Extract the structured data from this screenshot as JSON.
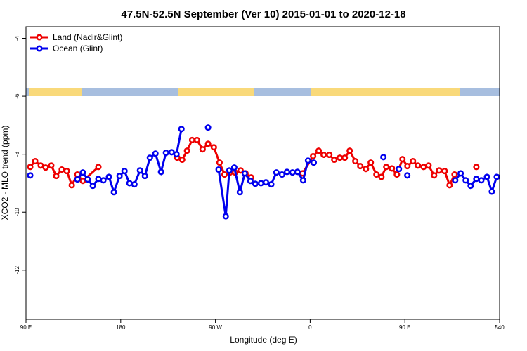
{
  "chart_data": {
    "type": "line",
    "title": "47.5N-52.5N September (Ver 10)   2015-01-01 to 2020-12-18",
    "xlabel": "Longitude (deg E)",
    "ylabel": "XCO2 - MLO trend (ppm)",
    "xlim": [
      90,
      540
    ],
    "ylim": [
      -13.7,
      -3.6
    ],
    "xticks": [
      {
        "value": 90,
        "label": "90 E"
      },
      180,
      {
        "value": 270,
        "label": "90 W"
      },
      {
        "value": 360,
        "label": "0"
      },
      {
        "value": 450,
        "label": "90 E"
      },
      540
    ],
    "yticks": [
      -4,
      -6,
      -8,
      -10,
      -12
    ],
    "legend": "top-left",
    "series": [
      {
        "name": "Land (Nadir&Glint)",
        "color": "#ee0000",
        "x": [
          94,
          98.7,
          104,
          108.7,
          114,
          118.7,
          124,
          128.8,
          133.5,
          138.8,
          144,
          158.8,
          null,
          233.7,
          238.4,
          243,
          247.8,
          252.5,
          257.8,
          263,
          268.5,
          273.9,
          278.6,
          283.8,
          288.6,
          293.9,
          298.6,
          303.9,
          null,
          352.8,
          362.8,
          368.1,
          372.8,
          378.2,
          382.9,
          388.2,
          392.9,
          397.6,
          402.9,
          407.6,
          413,
          417.6,
          423,
          427.7,
          432.3,
          437.7,
          442.4,
          447.7,
          452.4,
          457.7,
          462.4,
          467.8,
          472.5,
          477.8,
          482.5,
          487.8,
          492.5,
          497.2,
          null,
          517.9
        ],
        "values": [
          -8.44,
          -8.24,
          -8.39,
          -8.46,
          -8.39,
          -8.75,
          -8.53,
          -8.58,
          -9.07,
          -8.7,
          -8.92,
          -8.44,
          null,
          -8.12,
          -8.19,
          -7.88,
          -7.51,
          -7.51,
          -7.83,
          -7.64,
          -7.76,
          -8.29,
          -8.7,
          -8.63,
          -8.63,
          -8.56,
          -8.66,
          -8.8,
          null,
          -8.66,
          -8.07,
          -7.88,
          -8.02,
          -8.02,
          -8.19,
          -8.12,
          -8.12,
          -7.88,
          -8.24,
          -8.41,
          -8.51,
          -8.29,
          -8.7,
          -8.78,
          -8.44,
          -8.49,
          -8.7,
          -8.17,
          -8.41,
          -8.24,
          -8.39,
          -8.44,
          -8.39,
          -8.73,
          -8.56,
          -8.58,
          -9.07,
          -8.7,
          null,
          -8.44
        ]
      },
      {
        "name": "Ocean (Glint)",
        "color": "#0000ee",
        "x": [
          94,
          null,
          138.8,
          144,
          148.7,
          153.5,
          158.8,
          163.5,
          168.8,
          173.5,
          178.9,
          183.6,
          188.3,
          193,
          198.3,
          203,
          207.7,
          213,
          218.3,
          223,
          228.4,
          233,
          237.7,
          null,
          263,
          null,
          273,
          279.8,
          283.2,
          287.9,
          293.2,
          297.9,
          303.2,
          307.9,
          313.3,
          318,
          323,
          327.9,
          333.3,
          338,
          343.2,
          347.9,
          353.3,
          358,
          363.4,
          null,
          429.6,
          null,
          444.3,
          null,
          452.3,
          null,
          497.8,
          503,
          507.8,
          512.5,
          517.9,
          522.6,
          528,
          532.6,
          537.3
        ],
        "values": [
          -8.73,
          null,
          -8.87,
          -8.63,
          -8.87,
          -9.09,
          -8.85,
          -8.9,
          -8.78,
          -9.31,
          -8.75,
          -8.58,
          -9.0,
          -9.04,
          -8.56,
          -8.75,
          -8.12,
          -7.98,
          -8.61,
          -7.95,
          -7.93,
          -8.0,
          -7.13,
          null,
          -7.08,
          null,
          -8.53,
          -10.14,
          -8.56,
          -8.46,
          -9.31,
          -8.66,
          -8.92,
          -9.02,
          -9.0,
          -8.97,
          -9.04,
          -8.63,
          -8.7,
          -8.61,
          -8.63,
          -8.61,
          -8.9,
          -8.22,
          -8.29,
          null,
          -8.1,
          null,
          -8.51,
          null,
          -8.73,
          null,
          -8.9,
          -8.66,
          -8.9,
          -9.09,
          -8.85,
          -8.9,
          -8.78,
          -9.29,
          -8.78
        ]
      }
    ]
  }
}
